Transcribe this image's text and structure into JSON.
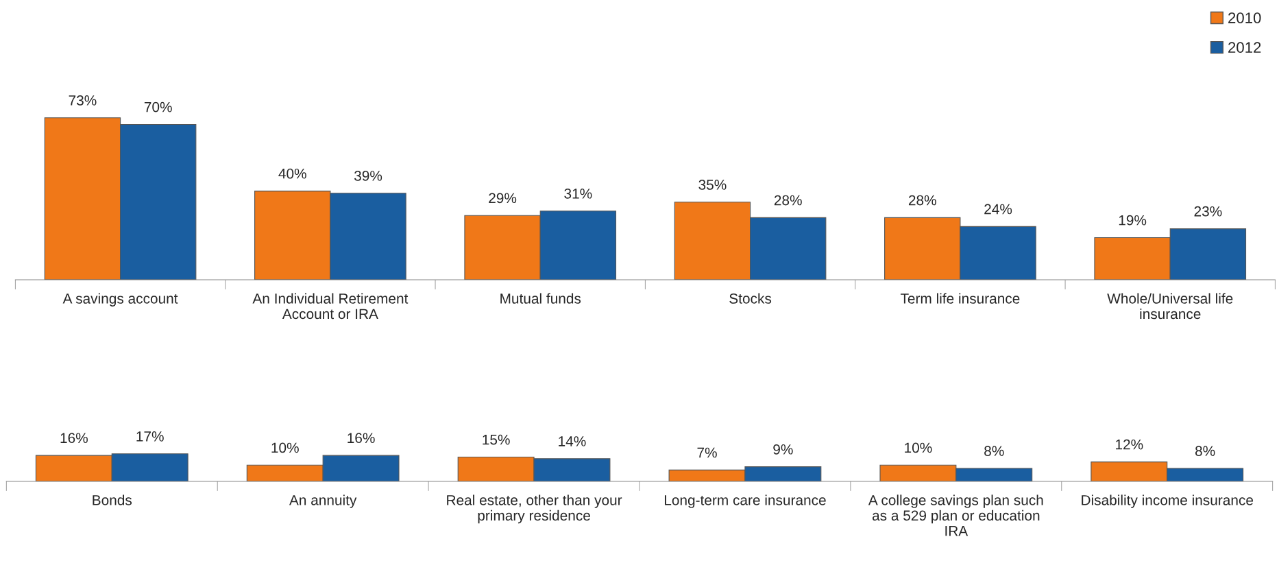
{
  "chart_data": [
    {
      "type": "bar",
      "legend": "top right",
      "categories": [
        "A savings account",
        "An Individual Retirement Account or IRA",
        "Mutual funds",
        "Stocks",
        "Term life insurance",
        "Whole/Universal life insurance"
      ],
      "series": [
        {
          "name": "2010",
          "color": "#f07818",
          "values": [
            73,
            40,
            29,
            35,
            28,
            19
          ],
          "value_labels": [
            "73%",
            "40%",
            "29%",
            "35%",
            "28%",
            "19%"
          ]
        },
        {
          "name": "2012",
          "color": "#1a5ea0",
          "values": [
            70,
            39,
            31,
            28,
            24,
            23
          ],
          "value_labels": [
            "70%",
            "39%",
            "31%",
            "28%",
            "24%",
            "23%"
          ]
        }
      ]
    },
    {
      "type": "bar",
      "categories": [
        "Bonds",
        "An annuity",
        "Real estate, other than your primary residence",
        "Long-term care insurance",
        "A college savings plan such as a 529 plan or education IRA",
        "Disability income insurance"
      ],
      "series": [
        {
          "name": "2010",
          "color": "#f07818",
          "values": [
            16,
            10,
            15,
            7,
            10,
            12
          ],
          "value_labels": [
            "16%",
            "10%",
            "15%",
            "7%",
            "10%",
            "12%"
          ]
        },
        {
          "name": "2012",
          "color": "#1a5ea0",
          "values": [
            17,
            16,
            14,
            9,
            8,
            8
          ],
          "value_labels": [
            "17%",
            "16%",
            "14%",
            "9%",
            "8%",
            "8%"
          ]
        }
      ]
    }
  ]
}
